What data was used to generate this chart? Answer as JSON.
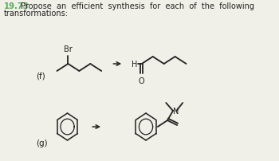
{
  "title_number": "19.73",
  "title_color": "#5aaa5a",
  "body_color": "#222222",
  "background_color": "#f0efe8",
  "label_f": "(f)",
  "label_g": "(g)"
}
